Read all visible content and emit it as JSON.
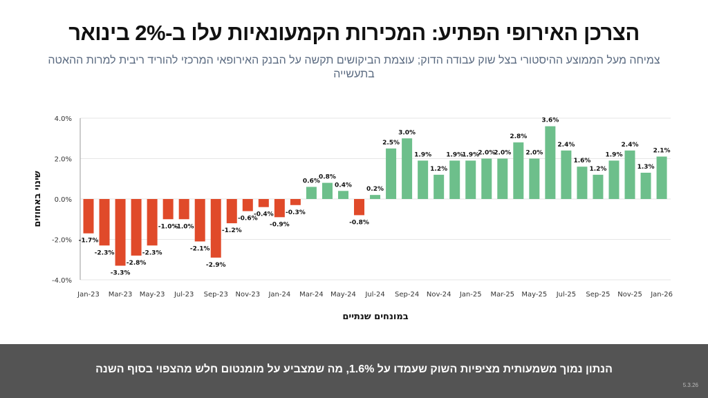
{
  "header": {
    "title": "הצרכן האירופי הפתיע: המכירות הקמעונאיות עלו ב-2% בינואר",
    "subtitle": "צמיחה מעל הממוצע ההיסטורי בצל שוק עבודה הדוק; עוצמת הביקושים תקשה על הבנק האירופאי המרכזי להוריד ריבית למרות ההאטה בתעשייה"
  },
  "footer": {
    "text": "הנתון נמוך משמעותית מציפיות השוק שעמדו על 1.6%, מה שמצביע על מומנטום חלש מהצפוי בסוף השנה",
    "date": "5.3.26"
  },
  "chart_data": {
    "type": "bar",
    "title": "",
    "xlabel": "במונחים שנתיים",
    "ylabel": "שינוי באחוזים",
    "ylim": [
      -4,
      4
    ],
    "yticks": [
      "4.0%",
      "2.0%",
      "0.0%",
      "-2.0%",
      "-4.0%"
    ],
    "ytick_values": [
      4,
      2,
      0,
      -2,
      -4
    ],
    "grid": true,
    "colors": {
      "positive": "#6dbf8b",
      "negative": "#e04a2a"
    },
    "categories": [
      "Jan-23",
      "Feb-23",
      "Mar-23",
      "Apr-23",
      "May-23",
      "Jun-23",
      "Jul-23",
      "Aug-23",
      "Sep-23",
      "Oct-23",
      "Nov-23",
      "Dec-23",
      "Jan-24",
      "Feb-24",
      "Mar-24",
      "Apr-24",
      "May-24",
      "Jun-24",
      "Jul-24",
      "Aug-24",
      "Sep-24",
      "Oct-24",
      "Nov-24",
      "Dec-24",
      "Jan-25",
      "Feb-25",
      "Mar-25",
      "Apr-25",
      "May-25",
      "Jun-25",
      "Jul-25",
      "Aug-25",
      "Sep-25",
      "Oct-25",
      "Nov-25",
      "Dec-25",
      "Jan-26"
    ],
    "values": [
      -1.7,
      -2.3,
      -3.3,
      -2.8,
      -2.3,
      -1.0,
      -1.0,
      -2.1,
      -2.9,
      -1.2,
      -0.6,
      -0.4,
      -0.9,
      -0.3,
      0.6,
      0.8,
      0.4,
      -0.8,
      0.2,
      2.5,
      3.0,
      1.9,
      1.2,
      1.9,
      1.9,
      2.0,
      2.0,
      2.8,
      2.0,
      3.6,
      2.4,
      1.6,
      1.2,
      1.9,
      2.4,
      1.3,
      2.1
    ],
    "xtick_labels": [
      "Jan-23",
      "Mar-23",
      "May-23",
      "Jul-23",
      "Sep-23",
      "Nov-23",
      "Jan-24",
      "Mar-24",
      "May-24",
      "Jul-24",
      "Sep-24",
      "Nov-24",
      "Jan-25",
      "Mar-25",
      "May-25",
      "Jul-25",
      "Sep-25",
      "Nov-25",
      "Jan-26"
    ]
  }
}
